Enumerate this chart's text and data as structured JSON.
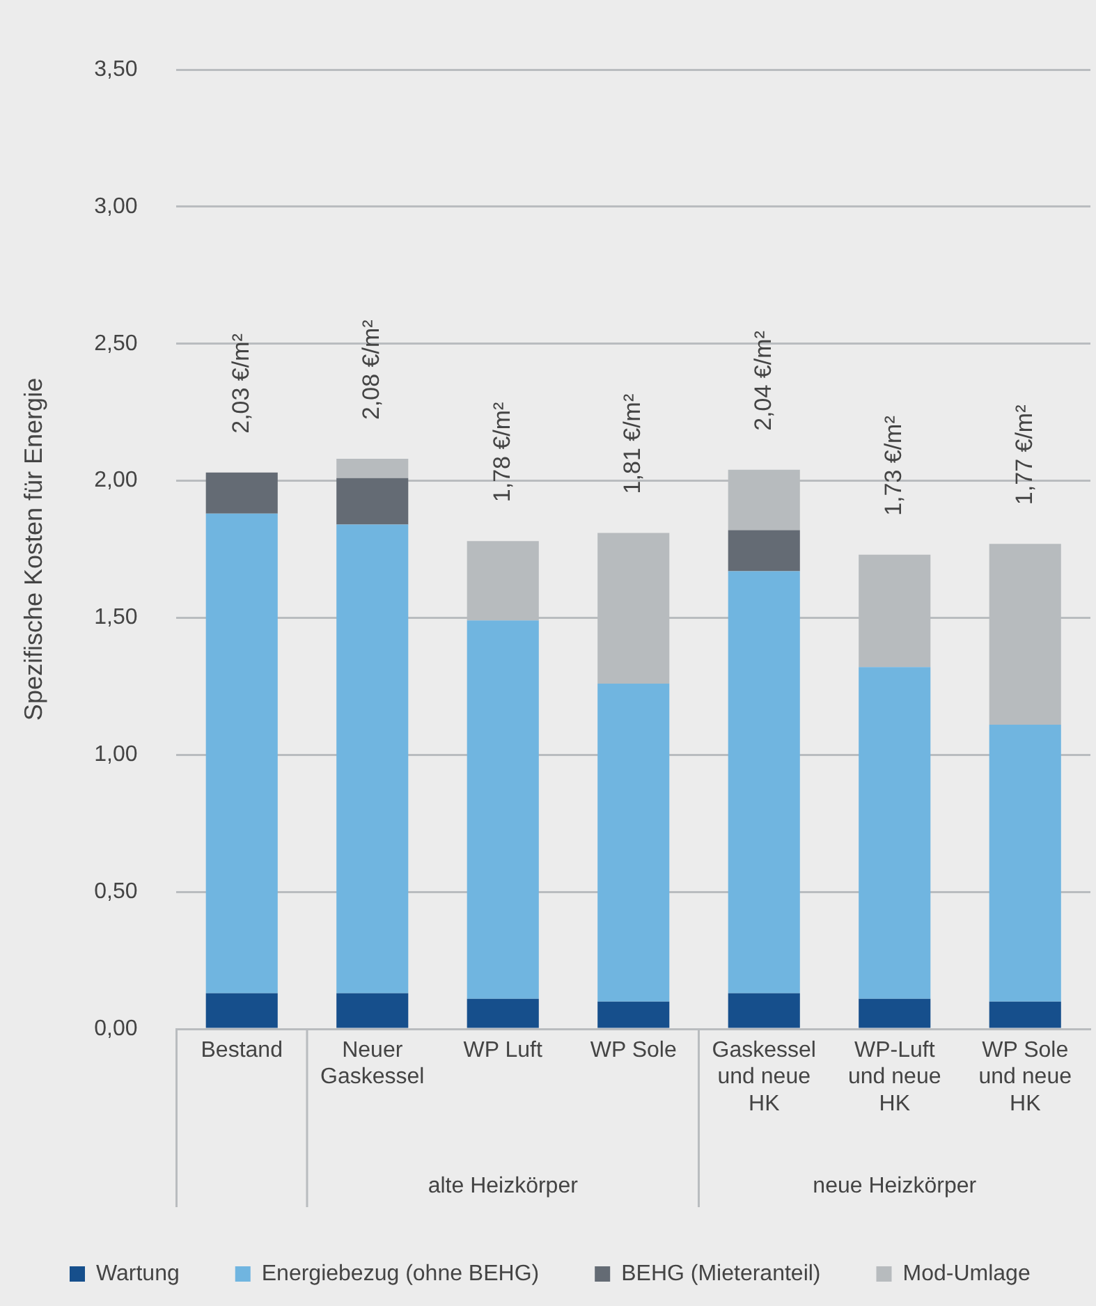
{
  "chart_data": {
    "type": "bar",
    "stacked": true,
    "ylabel": "Spezifische Kosten für Energie",
    "categories": [
      "Bestand",
      "Neuer Gaskessel",
      "WP Luft",
      "WP Sole",
      "Gaskessel und neue HK",
      "WP-Luft und neue HK",
      "WP Sole und neue HK"
    ],
    "series": [
      {
        "name": "Wartung",
        "color": "#164f8c",
        "values": [
          0.13,
          0.13,
          0.11,
          0.1,
          0.13,
          0.11,
          0.1
        ]
      },
      {
        "name": "Energiebezug (ohne BEHG)",
        "color": "#70b5e0",
        "values": [
          1.75,
          1.71,
          1.38,
          1.16,
          1.54,
          1.21,
          1.01
        ]
      },
      {
        "name": "BEHG (Mieteranteil)",
        "color": "#646b74",
        "values": [
          0.15,
          0.17,
          null,
          null,
          0.15,
          null,
          null
        ]
      },
      {
        "name": "Mod-Umlage",
        "color": "#b7bbbe",
        "values": [
          null,
          0.07,
          0.29,
          0.55,
          0.22,
          0.41,
          0.66
        ]
      }
    ],
    "totals": [
      "2,03 €/m²",
      "2,08 €/m²",
      "1,78 €/m²",
      "1,81 €/m²",
      "2,04 €/m²",
      "1,73 €/m²",
      "1,77 €/m²"
    ],
    "annotations": [
      "alte Heizkörper",
      "neue Heizkörper"
    ],
    "ylim": [
      0,
      3.5
    ],
    "yticks": [
      {
        "value": 0,
        "label": "0,00"
      },
      {
        "value": 0.5,
        "label": "0,50"
      },
      {
        "value": 1,
        "label": "1,00"
      },
      {
        "value": 1.5,
        "label": "1,50"
      },
      {
        "value": 2,
        "label": "2,00"
      },
      {
        "value": 2.5,
        "label": "2,50"
      },
      {
        "value": 3,
        "label": "3,00"
      },
      {
        "value": 3.5,
        "label": "3,50"
      }
    ],
    "grid": "y",
    "legend": "bottom"
  }
}
